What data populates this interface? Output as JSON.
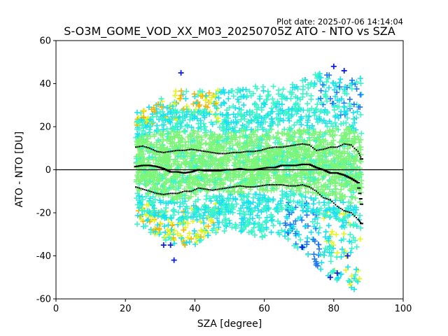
{
  "chart_data": {
    "type": "scatter",
    "plot_date": "Plot date: 2025-07-06 14:14:04",
    "title": "S-O3M_GOME_VOD_XX_M03_20250705Z ATO - NTO vs SZA",
    "xlabel": "SZA [degree]",
    "ylabel": "ATO - NTO [DU]",
    "xlim": [
      0,
      100
    ],
    "ylim": [
      -60,
      60
    ],
    "xticks": [
      0,
      20,
      40,
      60,
      80,
      100
    ],
    "yticks": [
      -60,
      -40,
      -20,
      0,
      20,
      40,
      60
    ],
    "grid": false,
    "legend": "none",
    "reference_line_y": 0,
    "marker": "+",
    "colormap": "jet (colour encodes point density)",
    "colors": {
      "dense_core": "#7df57a",
      "mid": "#3cf5c8",
      "outer_cyan": "#19e1f0",
      "blue": "#1e78f0",
      "deep_blue": "#0a1edc",
      "yellow": "#e6f51e",
      "orange": "#f5b40a",
      "mean_line": "#000000"
    },
    "scatter_envelope": {
      "sza": [
        23,
        30,
        35,
        40,
        45,
        50,
        55,
        60,
        65,
        70,
        75,
        80,
        85,
        88
      ],
      "upper": [
        27,
        33,
        38,
        36,
        38,
        37,
        38,
        40,
        38,
        41,
        45,
        44,
        44,
        43
      ],
      "core_upper": [
        18,
        22,
        22,
        22,
        21,
        21,
        22,
        22,
        23,
        24,
        22,
        24,
        24,
        20
      ],
      "core_lower": [
        -14,
        -17,
        -18,
        -17,
        -16,
        -15,
        -15,
        -14,
        -13,
        -14,
        -15,
        -17,
        -20,
        -22
      ],
      "lower": [
        -25,
        -32,
        -35,
        -35,
        -30,
        -28,
        -29,
        -33,
        -31,
        -37,
        -45,
        -52,
        -55,
        -58
      ]
    },
    "series": [
      {
        "x": [
          23,
          25,
          27,
          29,
          31,
          33,
          35,
          37,
          39,
          41,
          43,
          45,
          47,
          49,
          51,
          53,
          55,
          57,
          59,
          61,
          63,
          65,
          67,
          69,
          71,
          73,
          75,
          77,
          79,
          81,
          83,
          85,
          87,
          88
        ],
        "y": [
          1.5,
          2,
          2,
          1.5,
          0.5,
          -1,
          -1,
          -1.5,
          -1,
          0,
          -0.5,
          -0.5,
          -0.5,
          0,
          0,
          0.5,
          0,
          0,
          0.5,
          1,
          1,
          2,
          2,
          2,
          2.5,
          2.5,
          1,
          0,
          -1.5,
          -1.5,
          -2.5,
          -4,
          -6,
          -16
        ]
      },
      {
        "x": [
          23,
          25,
          27,
          29,
          31,
          33,
          35,
          37,
          39,
          41,
          43,
          45,
          47,
          49,
          51,
          53,
          55,
          57,
          59,
          61,
          63,
          65,
          67,
          69,
          71,
          73,
          75,
          77,
          79,
          81,
          83,
          85,
          87,
          88
        ],
        "y": [
          10.5,
          11,
          10,
          8.5,
          8,
          8.5,
          9,
          9,
          9.5,
          9,
          8.5,
          8,
          7.5,
          7.5,
          8,
          8,
          8.5,
          8.5,
          9,
          10,
          10.5,
          10.5,
          11,
          11.5,
          12,
          11.5,
          9,
          9.5,
          10.5,
          10.5,
          12,
          11.5,
          8.5,
          5
        ]
      },
      {
        "x": [
          23,
          25,
          27,
          29,
          31,
          33,
          35,
          37,
          39,
          41,
          43,
          45,
          47,
          49,
          51,
          53,
          55,
          57,
          59,
          61,
          63,
          65,
          67,
          69,
          71,
          73,
          75,
          77,
          79,
          81,
          83,
          85,
          87,
          88
        ],
        "y": [
          -8,
          -9,
          -10,
          -11,
          -11.5,
          -11,
          -11,
          -10,
          -10,
          -8.5,
          -9,
          -9.5,
          -9,
          -8.5,
          -8,
          -7.5,
          -8,
          -8,
          -7.5,
          -7,
          -7,
          -7,
          -7.5,
          -7.5,
          -7,
          -8,
          -10,
          -13,
          -14,
          -17,
          -19,
          -20,
          -23,
          -25
        ]
      }
    ]
  }
}
